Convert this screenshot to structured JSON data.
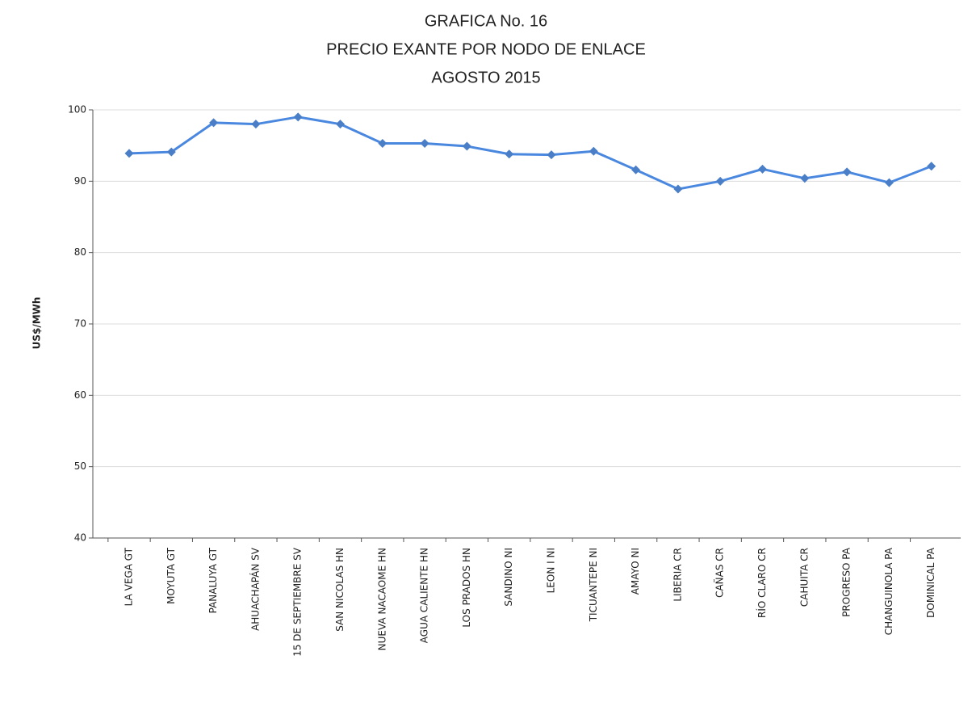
{
  "chart_data": {
    "type": "line",
    "title": [
      "GRAFICA No. 16",
      "PRECIO EXANTE POR NODO DE ENLACE",
      "AGOSTO 2015"
    ],
    "y_label": "US$/MWh",
    "categories": [
      "LA VEGA GT",
      "MOYUTA GT",
      "PANALUYA GT",
      "AHUACHAPÁN SV",
      "15 DE SEPTIEMBRE SV",
      "SAN NICOLAS HN",
      "NUEVA NACAOME HN",
      "AGUA CALIENTE HN",
      "LOS PRADOS HN",
      "SANDINO NI",
      "LEON I NI",
      "TICUANTEPE NI",
      "AMAYO NI",
      "LIBERIA CR",
      "CAÑAS CR",
      "RÍO CLARO CR",
      "CAHUITA CR",
      "PROGRESO PA",
      "CHANGUINOLA PA",
      "DOMINICAL PA"
    ],
    "series": [
      {
        "color": "#4a88e0",
        "values": [
          93.9,
          94.1,
          98.2,
          98.0,
          99.0,
          98.0,
          95.3,
          95.3,
          94.9,
          93.8,
          93.7,
          94.2,
          91.6,
          88.9,
          90.0,
          91.7,
          90.4,
          91.3,
          89.8,
          92.1
        ]
      }
    ],
    "ylim": [
      40,
      100
    ],
    "yticks": [
      40,
      50,
      60,
      70,
      80,
      90,
      100
    ],
    "grid": true
  }
}
